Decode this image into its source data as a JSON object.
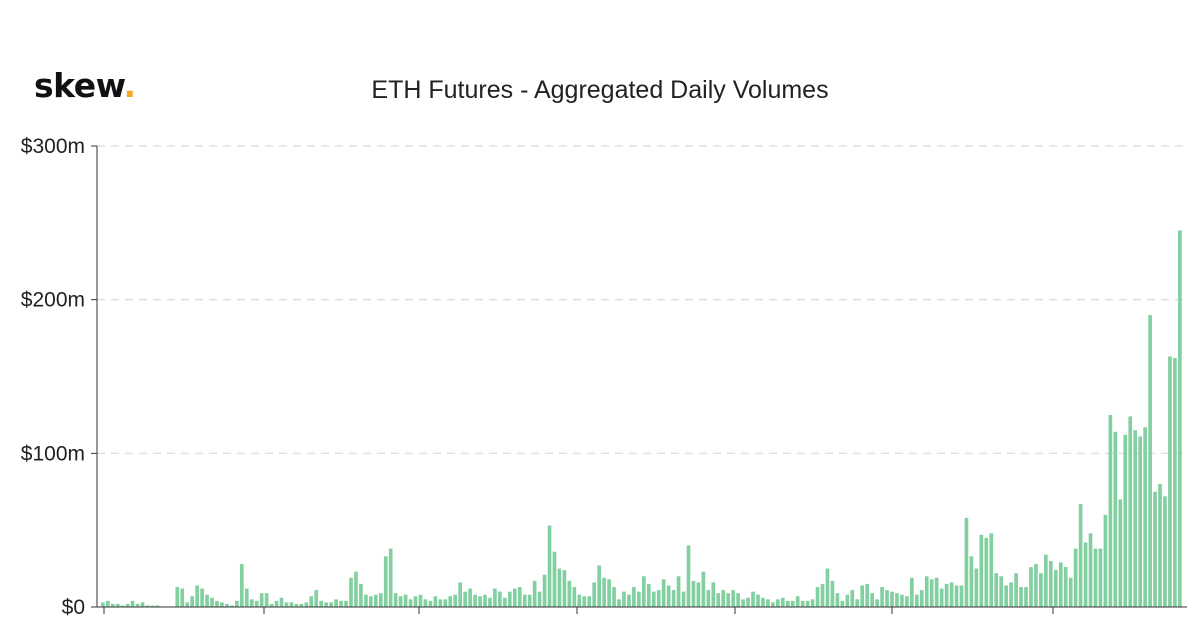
{
  "brand": {
    "name": "skew",
    "dot": "."
  },
  "colors": {
    "bar": "#82cfa0",
    "grid": "#e0e0e0",
    "axis": "#333333",
    "brand_dot": "#f5a623"
  },
  "chart_data": {
    "type": "bar",
    "title": "ETH Futures - Aggregated Daily Volumes",
    "xlabel": "",
    "ylabel": "",
    "ylim": [
      0,
      300
    ],
    "yticks": [
      0,
      100,
      200,
      300
    ],
    "ytick_labels": [
      "$0",
      "$100m",
      "$200m",
      "$300m"
    ],
    "grid": true,
    "values": [
      3,
      4,
      2,
      2,
      1,
      2,
      4,
      2,
      3,
      1,
      1,
      1,
      0,
      0,
      0,
      13,
      12,
      3,
      7,
      14,
      12,
      8,
      6,
      4,
      3,
      2,
      1,
      4,
      28,
      12,
      5,
      4,
      9,
      9,
      2,
      4,
      6,
      3,
      3,
      2,
      2,
      3,
      7,
      11,
      4,
      3,
      3,
      5,
      4,
      4,
      19,
      23,
      15,
      8,
      7,
      8,
      9,
      33,
      38,
      9,
      7,
      8,
      5,
      7,
      8,
      5,
      4,
      7,
      5,
      5,
      7,
      8,
      16,
      10,
      12,
      8,
      7,
      8,
      6,
      12,
      10,
      6,
      10,
      12,
      13,
      8,
      8,
      17,
      10,
      21,
      53,
      36,
      25,
      24,
      17,
      13,
      8,
      7,
      7,
      16,
      27,
      19,
      18,
      13,
      5,
      10,
      8,
      13,
      10,
      20,
      15,
      10,
      11,
      18,
      14,
      11,
      20,
      10,
      40,
      17,
      16,
      23,
      11,
      16,
      9,
      11,
      9,
      11,
      9,
      5,
      6,
      10,
      8,
      6,
      5,
      3,
      5,
      6,
      4,
      4,
      7,
      4,
      4,
      5,
      13,
      15,
      25,
      17,
      9,
      4,
      8,
      11,
      5,
      14,
      15,
      9,
      5,
      13,
      11,
      10,
      9,
      8,
      7,
      19,
      8,
      11,
      20,
      18,
      19,
      12,
      15,
      16,
      14,
      14,
      58,
      33,
      25,
      47,
      45,
      48,
      22,
      20,
      14,
      16,
      22,
      13,
      13,
      26,
      28,
      22,
      34,
      30,
      24,
      29,
      26,
      19,
      38,
      67,
      42,
      48,
      38,
      38,
      60,
      125,
      114,
      70,
      112,
      124,
      115,
      111,
      117,
      190,
      75,
      80,
      72,
      163,
      162,
      245
    ]
  }
}
